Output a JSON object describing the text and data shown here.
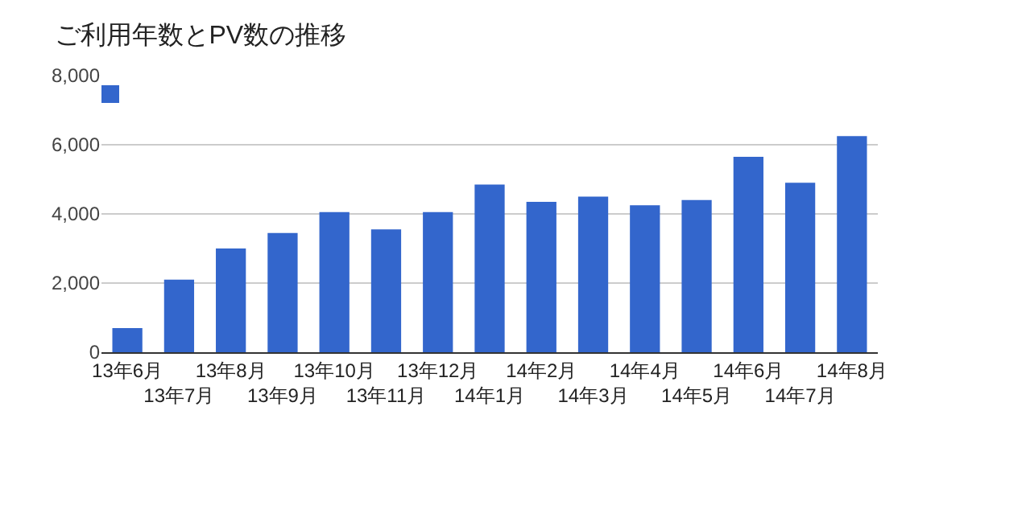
{
  "chart_data": {
    "type": "bar",
    "title": "ご利用年数とPV数の推移",
    "categories": [
      "13年6月",
      "13年7月",
      "13年8月",
      "13年9月",
      "13年10月",
      "13年11月",
      "13年12月",
      "14年1月",
      "14年2月",
      "14年3月",
      "14年4月",
      "14年5月",
      "14年6月",
      "14年7月",
      "14年8月"
    ],
    "series": [
      {
        "color": "#3366cc",
        "values": [
          700,
          2100,
          3000,
          3450,
          4050,
          3550,
          4050,
          4850,
          4350,
          4500,
          4250,
          4400,
          5650,
          4900,
          6250
        ]
      }
    ],
    "ylim": [
      0,
      8000
    ],
    "yticks": [
      {
        "value": 0,
        "label": "0"
      },
      {
        "value": 2000,
        "label": "2,000"
      },
      {
        "value": 4000,
        "label": "4,000"
      },
      {
        "value": 6000,
        "label": "6,000"
      },
      {
        "value": 8000,
        "label": "8,000"
      }
    ],
    "grid": "y"
  }
}
